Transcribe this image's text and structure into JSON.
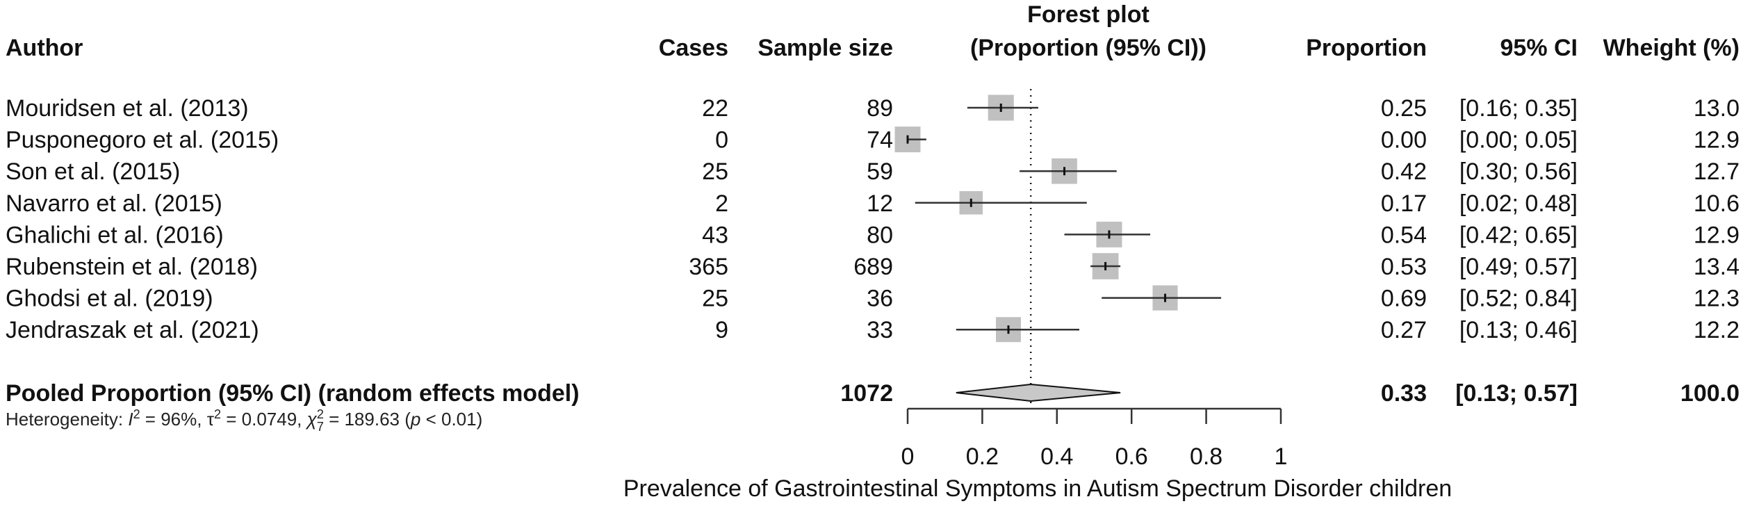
{
  "chart_data": {
    "type": "forest",
    "title": "Forest plot",
    "subtitle": "(Proportion (95% CI))",
    "xlabel": "Prevalence of Gastrointestinal Symptoms in Autism Spectrum Disorder children",
    "xlim": [
      0,
      1
    ],
    "xticks": [
      "0",
      "0.2",
      "0.4",
      "0.6",
      "0.8",
      "1"
    ],
    "xtick_values": [
      0,
      0.2,
      0.4,
      0.6,
      0.8,
      1
    ],
    "reference_line": 0.33,
    "colors": {
      "box": "#c0c0c0",
      "diamond": "#c8c8c8",
      "line": "#333333"
    },
    "columns": {
      "author": "Author",
      "cases": "Cases",
      "sample_size": "Sample size",
      "proportion": "Proportion",
      "ci": "95% CI",
      "weight": "Wheight (%)"
    },
    "studies": [
      {
        "author": "Mouridsen et al. (2013)",
        "cases": "22",
        "sample_size": "89",
        "proportion": 0.25,
        "lower": 0.16,
        "upper": 0.35,
        "proportion_text": "0.25",
        "ci_text": "[0.16; 0.35]",
        "weight": 13.0,
        "weight_text": "13.0"
      },
      {
        "author": "Pusponegoro et al. (2015)",
        "cases": "0",
        "sample_size": "74",
        "proportion": 0.0,
        "lower": 0.0,
        "upper": 0.05,
        "proportion_text": "0.00",
        "ci_text": "[0.00; 0.05]",
        "weight": 12.9,
        "weight_text": "12.9"
      },
      {
        "author": "Son et al. (2015)",
        "cases": "25",
        "sample_size": "59",
        "proportion": 0.42,
        "lower": 0.3,
        "upper": 0.56,
        "proportion_text": "0.42",
        "ci_text": "[0.30; 0.56]",
        "weight": 12.7,
        "weight_text": "12.7"
      },
      {
        "author": "Navarro et al. (2015)",
        "cases": "2",
        "sample_size": "12",
        "proportion": 0.17,
        "lower": 0.02,
        "upper": 0.48,
        "proportion_text": "0.17",
        "ci_text": "[0.02; 0.48]",
        "weight": 10.6,
        "weight_text": "10.6"
      },
      {
        "author": "Ghalichi et al. (2016)",
        "cases": "43",
        "sample_size": "80",
        "proportion": 0.54,
        "lower": 0.42,
        "upper": 0.65,
        "proportion_text": "0.54",
        "ci_text": "[0.42; 0.65]",
        "weight": 12.9,
        "weight_text": "12.9"
      },
      {
        "author": "Rubenstein et al. (2018)",
        "cases": "365",
        "sample_size": "689",
        "proportion": 0.53,
        "lower": 0.49,
        "upper": 0.57,
        "proportion_text": "0.53",
        "ci_text": "[0.49; 0.57]",
        "weight": 13.4,
        "weight_text": "13.4"
      },
      {
        "author": "Ghodsi et al. (2019)",
        "cases": "25",
        "sample_size": "36",
        "proportion": 0.69,
        "lower": 0.52,
        "upper": 0.84,
        "proportion_text": "0.69",
        "ci_text": "[0.52; 0.84]",
        "weight": 12.3,
        "weight_text": "12.3"
      },
      {
        "author": "Jendraszak et al. (2021)",
        "cases": "9",
        "sample_size": "33",
        "proportion": 0.27,
        "lower": 0.13,
        "upper": 0.46,
        "proportion_text": "0.27",
        "ci_text": "[0.13; 0.46]",
        "weight": 12.2,
        "weight_text": "12.2"
      }
    ],
    "pooled": {
      "label": "Pooled Proportion (95% CI) (random effects model)",
      "sample_size": "1072",
      "proportion": 0.33,
      "lower": 0.13,
      "upper": 0.57,
      "proportion_text": "0.33",
      "ci_text": "[0.13; 0.57]",
      "weight_text": "100.0"
    },
    "heterogeneity": {
      "prefix": "Heterogeneity: ",
      "i2_symbol": "I",
      "i2_value": " = 96%, ",
      "tau_symbol": "τ",
      "tau_value": " = 0.0749, ",
      "chi_symbol": "χ",
      "chi_df": "7",
      "chi_value": " = 189.63 (",
      "p_symbol": "p",
      "p_value": " < 0.01)",
      "sup": "2"
    }
  }
}
